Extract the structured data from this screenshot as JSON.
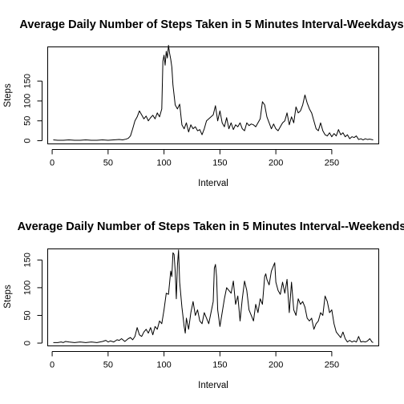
{
  "chart_data": [
    {
      "type": "line",
      "title": "Average Daily Number of Steps Taken in 5 Minutes Interval-Weekdays",
      "xlabel": "Interval",
      "ylabel": "Steps",
      "xlim": [
        -4,
        292
      ],
      "ylim": [
        -8,
        236
      ],
      "xticks": [
        0,
        50,
        100,
        150,
        200,
        250
      ],
      "yticks": [
        0,
        50,
        100,
        150
      ],
      "grid": false,
      "legend": "none",
      "series": [
        {
          "points": [
            [
              1,
              2
            ],
            [
              5,
              1
            ],
            [
              10,
              1
            ],
            [
              15,
              2
            ],
            [
              20,
              1
            ],
            [
              25,
              1
            ],
            [
              30,
              2
            ],
            [
              35,
              1
            ],
            [
              40,
              1
            ],
            [
              45,
              2
            ],
            [
              50,
              1
            ],
            [
              55,
              2
            ],
            [
              60,
              3
            ],
            [
              63,
              2
            ],
            [
              66,
              4
            ],
            [
              68,
              6
            ],
            [
              70,
              12
            ],
            [
              72,
              30
            ],
            [
              74,
              50
            ],
            [
              76,
              60
            ],
            [
              78,
              75
            ],
            [
              80,
              65
            ],
            [
              82,
              55
            ],
            [
              84,
              62
            ],
            [
              86,
              50
            ],
            [
              88,
              58
            ],
            [
              90,
              64
            ],
            [
              92,
              55
            ],
            [
              94,
              70
            ],
            [
              96,
              60
            ],
            [
              98,
              80
            ],
            [
              99,
              200
            ],
            [
              100,
              215
            ],
            [
              101,
              190
            ],
            [
              102,
              225
            ],
            [
              103,
              208
            ],
            [
              104,
              240
            ],
            [
              105,
              220
            ],
            [
              106,
              205
            ],
            [
              107,
              185
            ],
            [
              108,
              140
            ],
            [
              110,
              90
            ],
            [
              112,
              80
            ],
            [
              114,
              92
            ],
            [
              116,
              40
            ],
            [
              118,
              30
            ],
            [
              120,
              45
            ],
            [
              122,
              22
            ],
            [
              124,
              40
            ],
            [
              126,
              30
            ],
            [
              128,
              35
            ],
            [
              130,
              25
            ],
            [
              132,
              28
            ],
            [
              134,
              15
            ],
            [
              136,
              30
            ],
            [
              138,
              50
            ],
            [
              140,
              55
            ],
            [
              142,
              60
            ],
            [
              144,
              65
            ],
            [
              146,
              88
            ],
            [
              148,
              50
            ],
            [
              150,
              75
            ],
            [
              152,
              45
            ],
            [
              154,
              35
            ],
            [
              156,
              58
            ],
            [
              158,
              30
            ],
            [
              160,
              45
            ],
            [
              162,
              28
            ],
            [
              164,
              40
            ],
            [
              166,
              35
            ],
            [
              168,
              45
            ],
            [
              170,
              30
            ],
            [
              172,
              25
            ],
            [
              174,
              45
            ],
            [
              176,
              38
            ],
            [
              178,
              42
            ],
            [
              180,
              40
            ],
            [
              182,
              35
            ],
            [
              184,
              45
            ],
            [
              186,
              55
            ],
            [
              188,
              98
            ],
            [
              190,
              90
            ],
            [
              192,
              60
            ],
            [
              194,
              45
            ],
            [
              196,
              30
            ],
            [
              198,
              42
            ],
            [
              200,
              30
            ],
            [
              202,
              25
            ],
            [
              204,
              35
            ],
            [
              206,
              45
            ],
            [
              208,
              50
            ],
            [
              210,
              70
            ],
            [
              212,
              40
            ],
            [
              214,
              60
            ],
            [
              216,
              45
            ],
            [
              218,
              85
            ],
            [
              220,
              70
            ],
            [
              222,
              75
            ],
            [
              224,
              90
            ],
            [
              226,
              115
            ],
            [
              228,
              95
            ],
            [
              230,
              80
            ],
            [
              232,
              70
            ],
            [
              234,
              50
            ],
            [
              236,
              30
            ],
            [
              238,
              25
            ],
            [
              240,
              45
            ],
            [
              242,
              25
            ],
            [
              244,
              15
            ],
            [
              246,
              12
            ],
            [
              248,
              20
            ],
            [
              250,
              10
            ],
            [
              252,
              18
            ],
            [
              254,
              12
            ],
            [
              256,
              28
            ],
            [
              258,
              15
            ],
            [
              260,
              20
            ],
            [
              262,
              10
            ],
            [
              264,
              15
            ],
            [
              266,
              5
            ],
            [
              268,
              10
            ],
            [
              270,
              8
            ],
            [
              272,
              12
            ],
            [
              274,
              3
            ],
            [
              276,
              5
            ],
            [
              278,
              2
            ],
            [
              280,
              5
            ],
            [
              282,
              3
            ],
            [
              284,
              4
            ],
            [
              287,
              2
            ]
          ]
        }
      ]
    },
    {
      "type": "line",
      "title": "Average Daily Number of Steps Taken in 5 Minutes Interval--Weekends",
      "xlabel": "Interval",
      "ylabel": "Steps",
      "xlim": [
        -4,
        292
      ],
      "ylim": [
        -5,
        170
      ],
      "xticks": [
        0,
        50,
        100,
        150,
        200,
        250
      ],
      "yticks": [
        0,
        50,
        100,
        150
      ],
      "grid": false,
      "legend": "none",
      "series": [
        {
          "points": [
            [
              1,
              1
            ],
            [
              5,
              1
            ],
            [
              8,
              2
            ],
            [
              10,
              1
            ],
            [
              12,
              3
            ],
            [
              15,
              2
            ],
            [
              20,
              1
            ],
            [
              25,
              2
            ],
            [
              30,
              1
            ],
            [
              35,
              2
            ],
            [
              40,
              1
            ],
            [
              45,
              3
            ],
            [
              48,
              5
            ],
            [
              50,
              2
            ],
            [
              52,
              4
            ],
            [
              55,
              2
            ],
            [
              58,
              6
            ],
            [
              60,
              5
            ],
            [
              62,
              8
            ],
            [
              65,
              3
            ],
            [
              68,
              8
            ],
            [
              70,
              10
            ],
            [
              72,
              6
            ],
            [
              74,
              12
            ],
            [
              76,
              28
            ],
            [
              78,
              15
            ],
            [
              80,
              12
            ],
            [
              82,
              20
            ],
            [
              84,
              25
            ],
            [
              86,
              18
            ],
            [
              88,
              28
            ],
            [
              90,
              15
            ],
            [
              92,
              30
            ],
            [
              94,
              25
            ],
            [
              96,
              40
            ],
            [
              98,
              35
            ],
            [
              100,
              60
            ],
            [
              102,
              90
            ],
            [
              104,
              88
            ],
            [
              106,
              130
            ],
            [
              107,
              120
            ],
            [
              108,
              163
            ],
            [
              109,
              160
            ],
            [
              110,
              130
            ],
            [
              111,
              80
            ],
            [
              112,
              140
            ],
            [
              113,
              168
            ],
            [
              114,
              110
            ],
            [
              116,
              65
            ],
            [
              118,
              30
            ],
            [
              119,
              18
            ],
            [
              120,
              45
            ],
            [
              122,
              25
            ],
            [
              124,
              55
            ],
            [
              126,
              75
            ],
            [
              128,
              50
            ],
            [
              130,
              60
            ],
            [
              132,
              40
            ],
            [
              134,
              35
            ],
            [
              136,
              55
            ],
            [
              138,
              45
            ],
            [
              140,
              35
            ],
            [
              142,
              55
            ],
            [
              144,
              75
            ],
            [
              145,
              135
            ],
            [
              146,
              142
            ],
            [
              147,
              120
            ],
            [
              148,
              60
            ],
            [
              150,
              30
            ],
            [
              152,
              55
            ],
            [
              154,
              80
            ],
            [
              156,
              100
            ],
            [
              158,
              95
            ],
            [
              160,
              90
            ],
            [
              162,
              112
            ],
            [
              164,
              70
            ],
            [
              166,
              85
            ],
            [
              168,
              40
            ],
            [
              170,
              80
            ],
            [
              172,
              112
            ],
            [
              174,
              95
            ],
            [
              176,
              60
            ],
            [
              178,
              50
            ],
            [
              180,
              40
            ],
            [
              182,
              70
            ],
            [
              184,
              55
            ],
            [
              186,
              80
            ],
            [
              188,
              70
            ],
            [
              190,
              120
            ],
            [
              191,
              125
            ],
            [
              192,
              115
            ],
            [
              194,
              105
            ],
            [
              196,
              130
            ],
            [
              198,
              140
            ],
            [
              199,
              145
            ],
            [
              200,
              110
            ],
            [
              202,
              95
            ],
            [
              204,
              88
            ],
            [
              206,
              110
            ],
            [
              208,
              90
            ],
            [
              210,
              115
            ],
            [
              212,
              55
            ],
            [
              214,
              110
            ],
            [
              216,
              60
            ],
            [
              218,
              50
            ],
            [
              220,
              80
            ],
            [
              222,
              70
            ],
            [
              224,
              75
            ],
            [
              226,
              65
            ],
            [
              228,
              45
            ],
            [
              230,
              40
            ],
            [
              232,
              45
            ],
            [
              234,
              25
            ],
            [
              236,
              35
            ],
            [
              238,
              40
            ],
            [
              240,
              55
            ],
            [
              242,
              50
            ],
            [
              244,
              85
            ],
            [
              246,
              75
            ],
            [
              248,
              55
            ],
            [
              250,
              60
            ],
            [
              252,
              35
            ],
            [
              254,
              20
            ],
            [
              256,
              15
            ],
            [
              258,
              10
            ],
            [
              260,
              20
            ],
            [
              262,
              8
            ],
            [
              264,
              2
            ],
            [
              266,
              5
            ],
            [
              268,
              2
            ],
            [
              270,
              4
            ],
            [
              272,
              2
            ],
            [
              274,
              12
            ],
            [
              276,
              2
            ],
            [
              278,
              3
            ],
            [
              280,
              2
            ],
            [
              282,
              4
            ],
            [
              284,
              8
            ],
            [
              286,
              2
            ],
            [
              287,
              1
            ]
          ]
        }
      ]
    }
  ]
}
